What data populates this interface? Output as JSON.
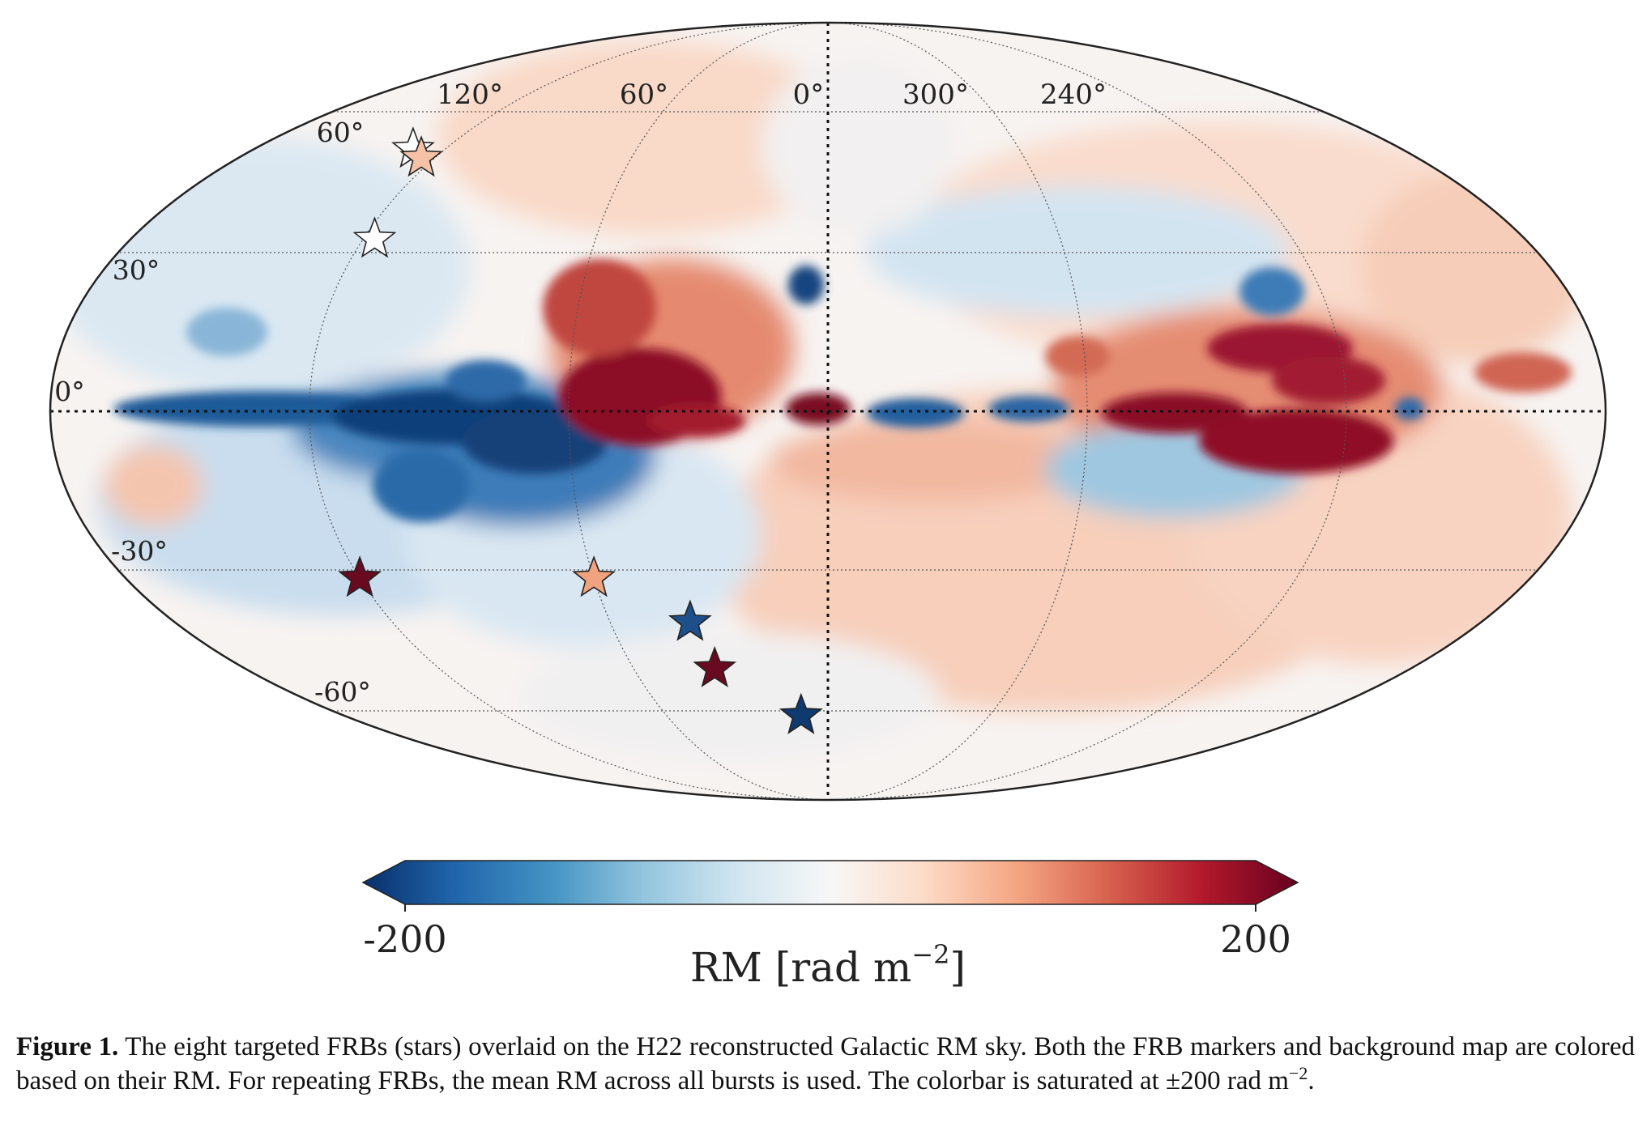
{
  "map": {
    "projection": "mollweide",
    "longitude_labels": [
      "120°",
      "60°",
      "0°",
      "300°",
      "240°"
    ],
    "latitude_labels": [
      "60°",
      "30°",
      "0°",
      "-30°",
      "-60°"
    ],
    "colormap": "red-white-blue",
    "frbs": [
      {
        "l": 130,
        "b": 52,
        "rm_color": "#ffffff"
      },
      {
        "l": 124,
        "b": 50,
        "rm_color": "#f5c2a8"
      },
      {
        "l": 117,
        "b": 33,
        "rm_color": "#ffffff"
      },
      {
        "l": 120,
        "b": -32,
        "rm_color": "#6a0a20"
      },
      {
        "l": 60,
        "b": -32,
        "rm_color": "#f1a27e"
      },
      {
        "l": 38,
        "b": -41,
        "rm_color": "#1d4f8a"
      },
      {
        "l": 35,
        "b": -51,
        "rm_color": "#6a0a20"
      },
      {
        "l": 10,
        "b": -62,
        "rm_color": "#0f3a70"
      }
    ]
  },
  "colorbar": {
    "min_label": "-200",
    "max_label": "200",
    "axis_label_main": "RM [rad m",
    "axis_label_exp": "−2",
    "axis_label_close": "]",
    "colors": [
      "#08306b",
      "#2166ac",
      "#4393c3",
      "#92c5de",
      "#d1e5f0",
      "#f7f7f7",
      "#fddbc7",
      "#f4a582",
      "#d6604d",
      "#b2182b",
      "#67001f"
    ]
  },
  "caption": {
    "fig_label": "Figure 1.",
    "text1": " The eight targeted FRBs (stars) overlaid on the H22 reconstructed Galactic RM sky. Both the FRB markers and background map are colored based on their RM. For repeating FRBs, the mean RM across all bursts is used. The colorbar is saturated at ±200 rad m",
    "exp": "−2",
    "text2": "."
  }
}
